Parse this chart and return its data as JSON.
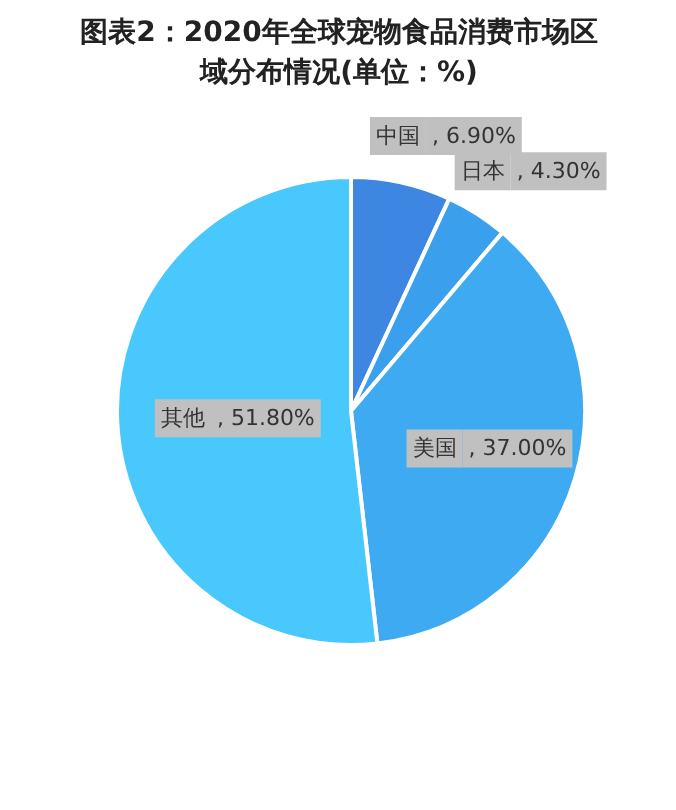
{
  "chart_data": {
    "type": "pie",
    "title": "图表2：2020年全球宠物食品消费市场区域分布情况(单位：%)",
    "categories": [
      "中国",
      "日本",
      "美国",
      "其他"
    ],
    "values": [
      6.9,
      4.3,
      37.0,
      51.8
    ],
    "colors": [
      "#3d86e2",
      "#3aa0ee",
      "#3eaaf2",
      "#48c8fd"
    ],
    "value_labels": [
      ", 6.90%",
      ", 4.30%",
      ", 37.00%",
      ", 51.80%"
    ]
  }
}
